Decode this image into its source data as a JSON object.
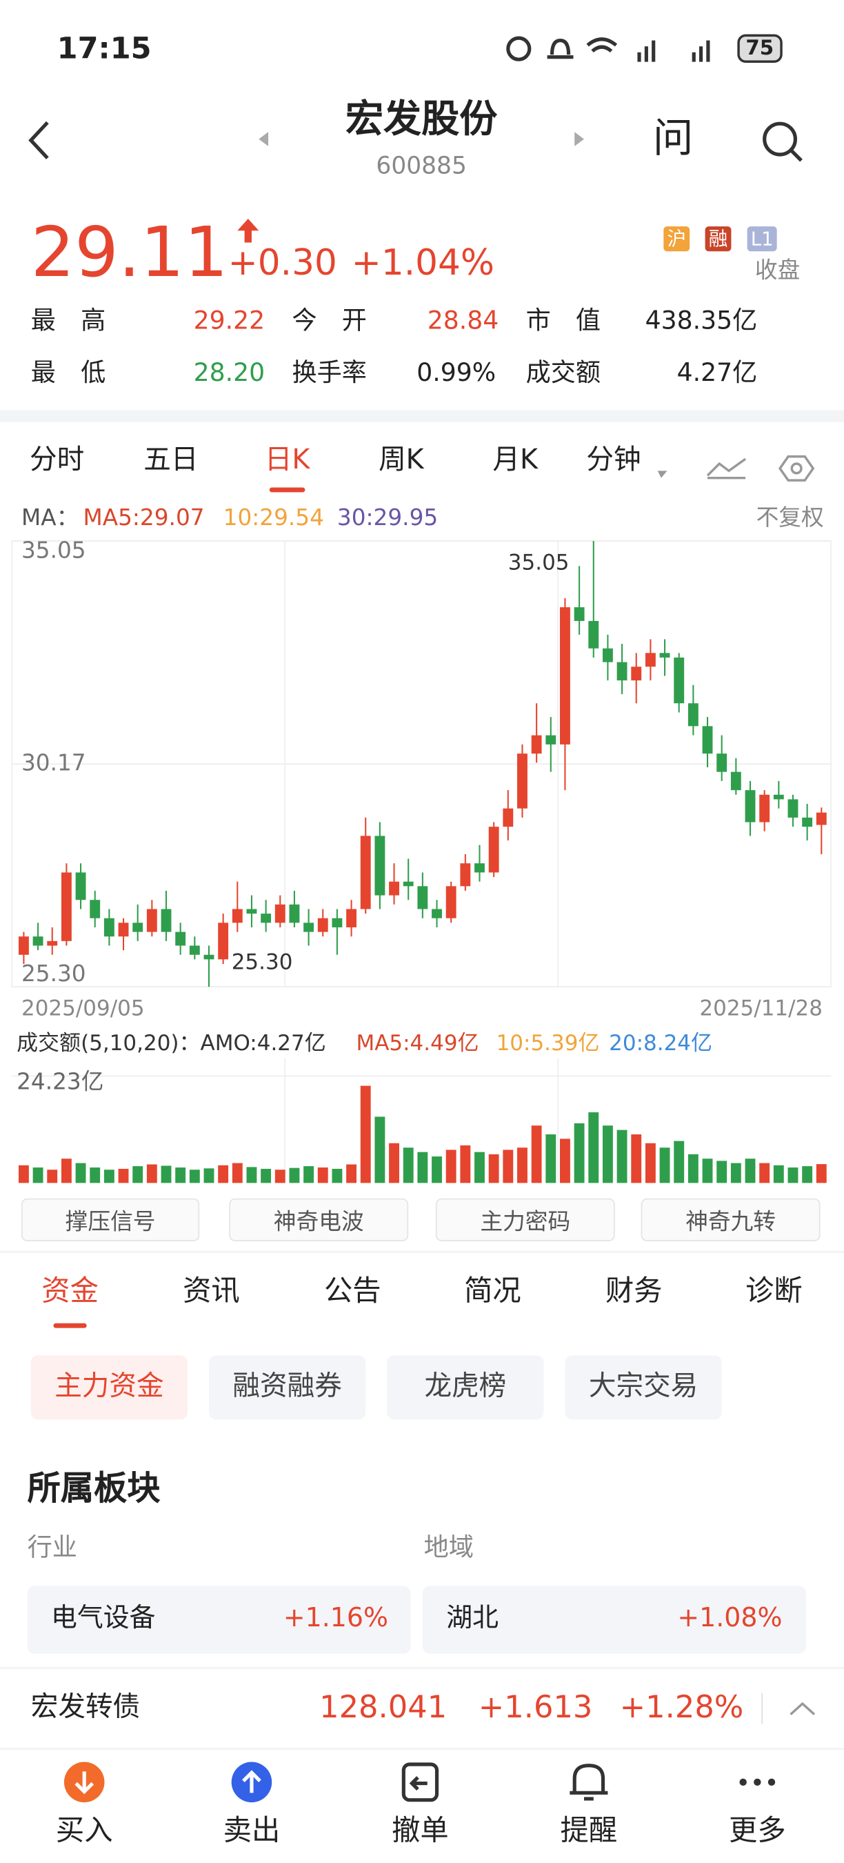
{
  "status_bar": {
    "time": "17:15",
    "battery": "75"
  },
  "header": {
    "title": "宏发股份",
    "code": "600885",
    "ask_icon": "问"
  },
  "quote": {
    "price": "29.11",
    "change": "+0.30",
    "change_pct": "+1.04%",
    "badges": [
      "沪",
      "融",
      "L1"
    ],
    "status": "收盘",
    "stats": [
      [
        "最　高",
        "29.22",
        "今　开",
        "28.84",
        "市　值",
        "438.35亿"
      ],
      [
        "最　低",
        "28.20",
        "换手率",
        "0.99%",
        "成交额",
        "4.27亿"
      ]
    ]
  },
  "period_tabs": [
    "分时",
    "五日",
    "日K",
    "周K",
    "月K",
    "分钟"
  ],
  "ma_legend": {
    "label": "MA：",
    "ma5": "MA5:29.07",
    "ma10": "10:29.54",
    "ma30": "30:29.95",
    "adjust": "不复权"
  },
  "chart_data": {
    "type": "candlestick",
    "ylim": [
      25.3,
      35.05
    ],
    "yticks": [
      35.05,
      30.17,
      {
        "value": 25.3,
        "label": "25.30"
      }
    ],
    "x_start_label": "2025/09/05",
    "x_end_label": "2025/11/28",
    "high_label": "35.05",
    "low_label": "25.30",
    "up_color": "#e5452f",
    "down_color": "#2f9e4c",
    "candles": [
      [
        26.0,
        26.5,
        25.8,
        26.4
      ],
      [
        26.4,
        26.7,
        26.1,
        26.2
      ],
      [
        26.2,
        26.6,
        26.0,
        26.3
      ],
      [
        26.3,
        28.0,
        26.2,
        27.8
      ],
      [
        27.8,
        28.0,
        27.0,
        27.2
      ],
      [
        27.2,
        27.4,
        26.6,
        26.8
      ],
      [
        26.8,
        27.0,
        26.2,
        26.4
      ],
      [
        26.4,
        26.8,
        26.1,
        26.7
      ],
      [
        26.7,
        27.1,
        26.3,
        26.5
      ],
      [
        26.5,
        27.2,
        26.4,
        27.0
      ],
      [
        27.0,
        27.4,
        26.3,
        26.5
      ],
      [
        26.5,
        26.7,
        26.0,
        26.2
      ],
      [
        26.2,
        26.4,
        25.9,
        26.0
      ],
      [
        26.0,
        26.2,
        25.3,
        25.9
      ],
      [
        25.9,
        26.9,
        25.8,
        26.7
      ],
      [
        26.7,
        27.6,
        26.5,
        27.0
      ],
      [
        27.0,
        27.3,
        26.6,
        26.9
      ],
      [
        26.9,
        27.2,
        26.5,
        26.7
      ],
      [
        26.7,
        27.3,
        26.6,
        27.1
      ],
      [
        27.1,
        27.4,
        26.6,
        26.7
      ],
      [
        26.7,
        27.0,
        26.2,
        26.5
      ],
      [
        26.5,
        27.0,
        26.4,
        26.8
      ],
      [
        26.8,
        27.0,
        26.0,
        26.6
      ],
      [
        26.6,
        27.2,
        26.4,
        27.0
      ],
      [
        27.0,
        29.0,
        26.9,
        28.6
      ],
      [
        28.6,
        28.9,
        27.0,
        27.3
      ],
      [
        27.3,
        28.0,
        27.1,
        27.6
      ],
      [
        27.6,
        28.1,
        27.2,
        27.5
      ],
      [
        27.5,
        27.8,
        26.8,
        27.0
      ],
      [
        27.0,
        27.2,
        26.6,
        26.8
      ],
      [
        26.8,
        27.6,
        26.7,
        27.5
      ],
      [
        27.5,
        28.2,
        27.4,
        28.0
      ],
      [
        28.0,
        28.4,
        27.6,
        27.8
      ],
      [
        27.8,
        28.9,
        27.7,
        28.8
      ],
      [
        28.8,
        29.6,
        28.5,
        29.2
      ],
      [
        29.2,
        30.6,
        29.0,
        30.4
      ],
      [
        30.4,
        31.5,
        30.2,
        30.8
      ],
      [
        30.8,
        31.2,
        30.0,
        30.6
      ],
      [
        30.6,
        33.8,
        29.6,
        33.6
      ],
      [
        33.6,
        34.5,
        33.0,
        33.3
      ],
      [
        33.3,
        35.05,
        32.5,
        32.7
      ],
      [
        32.7,
        33.0,
        32.0,
        32.4
      ],
      [
        32.4,
        32.8,
        31.7,
        32.0
      ],
      [
        32.0,
        32.6,
        31.5,
        32.3
      ],
      [
        32.3,
        32.9,
        32.0,
        32.6
      ],
      [
        32.6,
        32.9,
        32.1,
        32.5
      ],
      [
        32.5,
        32.6,
        31.3,
        31.5
      ],
      [
        31.5,
        31.9,
        30.8,
        31.0
      ],
      [
        31.0,
        31.2,
        30.1,
        30.4
      ],
      [
        30.4,
        30.8,
        29.8,
        30.0
      ],
      [
        30.0,
        30.3,
        29.5,
        29.6
      ],
      [
        29.6,
        29.8,
        28.6,
        28.9
      ],
      [
        28.9,
        29.6,
        28.7,
        29.5
      ],
      [
        29.5,
        29.8,
        29.2,
        29.4
      ],
      [
        29.4,
        29.5,
        28.8,
        29.0
      ],
      [
        29.0,
        29.3,
        28.5,
        28.8
      ],
      [
        28.84,
        29.22,
        28.2,
        29.11
      ]
    ]
  },
  "volume_chart": {
    "type": "bar",
    "title": "成交额(5,10,20)：AMO:4.27亿",
    "ma5": "MA5:4.49亿",
    "ma10": "10:5.39亿",
    "ma20": "20:8.24亿",
    "ylim": [
      0,
      24.23
    ],
    "yticks": [
      {
        "value": 24.23,
        "label": "24.23亿"
      }
    ],
    "values": [
      4.0,
      3.5,
      3.0,
      5.5,
      4.5,
      3.5,
      3.0,
      3.2,
      3.8,
      4.2,
      3.9,
      3.5,
      3.0,
      3.3,
      4.0,
      4.5,
      3.6,
      3.2,
      3.0,
      3.4,
      3.8,
      3.5,
      3.2,
      4.2,
      22.0,
      15.0,
      9.0,
      8.0,
      7.0,
      6.0,
      7.5,
      8.5,
      7.0,
      6.5,
      7.5,
      8.0,
      13.0,
      11.0,
      10.0,
      13.5,
      16.0,
      13.0,
      12.0,
      11.0,
      9.0,
      8.0,
      9.5,
      6.5,
      5.5,
      5.0,
      4.5,
      5.5,
      4.5,
      4.0,
      3.5,
      3.8,
      4.27
    ]
  },
  "tools": [
    "撑压信号",
    "神奇电波",
    "主力密码",
    "神奇九转"
  ],
  "info_tabs": [
    "资金",
    "资讯",
    "公告",
    "简况",
    "财务",
    "诊断"
  ],
  "sub_tabs": [
    "主力资金",
    "融资融券",
    "龙虎榜",
    "大宗交易"
  ],
  "sector": {
    "title": "所属板块",
    "industry_label": "行业",
    "region_label": "地域",
    "industry": "电气设备",
    "industry_change": "+1.16%",
    "region": "湖北",
    "region_change": "+1.08%"
  },
  "bond": {
    "name": "宏发转债",
    "price": "128.041",
    "change": "+1.613",
    "change_pct": "+1.28%"
  },
  "bottom_nav": [
    "买入",
    "卖出",
    "撤单",
    "提醒",
    "更多"
  ]
}
